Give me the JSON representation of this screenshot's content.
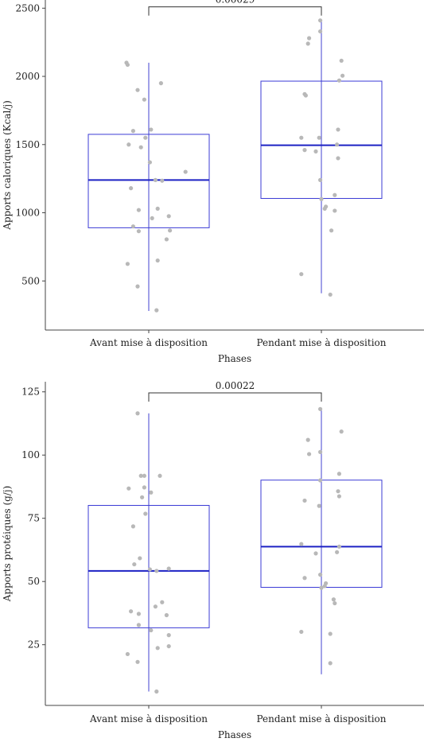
{
  "colors": {
    "box": "#3b3bd6",
    "median": "#1d22c4",
    "whisker": "#4040d0",
    "points": "#b8b8b8",
    "axis": "#444444",
    "bracket": "#333333"
  },
  "chart_data": [
    {
      "type": "box",
      "title": "",
      "xlabel": "Phases",
      "ylabel": "Apports caloriques (Kcal/j)",
      "categories": [
        "Avant mise à disposition",
        "Pendant mise à disposition"
      ],
      "yticks": [
        "500",
        "1000",
        "1500",
        "2000",
        "2500"
      ],
      "ytick_values": [
        500,
        1000,
        1500,
        2000,
        2500
      ],
      "ylim": [
        140,
        2560
      ],
      "grid": false,
      "boxes": [
        {
          "q1": 890,
          "median": 1240,
          "q3": 1575,
          "whisker_low": 280,
          "whisker_high": 2100
        },
        {
          "q1": 1105,
          "median": 1495,
          "q3": 1965,
          "whisker_low": 410,
          "whisker_high": 2410
        }
      ],
      "points": [
        [
          {
            "x": -0.2,
            "y": 2100
          },
          {
            "x": -0.19,
            "y": 2085
          },
          {
            "x": 0.11,
            "y": 1950
          },
          {
            "x": -0.1,
            "y": 1900
          },
          {
            "x": -0.04,
            "y": 1830
          },
          {
            "x": 0.02,
            "y": 1610
          },
          {
            "x": -0.14,
            "y": 1600
          },
          {
            "x": -0.03,
            "y": 1550
          },
          {
            "x": -0.18,
            "y": 1500
          },
          {
            "x": -0.07,
            "y": 1480
          },
          {
            "x": 0.01,
            "y": 1370
          },
          {
            "x": 0.33,
            "y": 1300
          },
          {
            "x": 0.06,
            "y": 1240
          },
          {
            "x": 0.12,
            "y": 1235
          },
          {
            "x": -0.16,
            "y": 1180
          },
          {
            "x": 0.08,
            "y": 1030
          },
          {
            "x": -0.09,
            "y": 1020
          },
          {
            "x": 0.18,
            "y": 975
          },
          {
            "x": 0.03,
            "y": 960
          },
          {
            "x": -0.14,
            "y": 900
          },
          {
            "x": 0.19,
            "y": 870
          },
          {
            "x": -0.09,
            "y": 865
          },
          {
            "x": 0.16,
            "y": 805
          },
          {
            "x": 0.08,
            "y": 650
          },
          {
            "x": -0.19,
            "y": 625
          },
          {
            "x": -0.1,
            "y": 460
          },
          {
            "x": 0.07,
            "y": 285
          }
        ],
        [
          {
            "x": -0.01,
            "y": 2410
          },
          {
            "x": -0.11,
            "y": 2280
          },
          {
            "x": -0.01,
            "y": 2330
          },
          {
            "x": -0.12,
            "y": 2240
          },
          {
            "x": 0.18,
            "y": 2115
          },
          {
            "x": 0.19,
            "y": 2005
          },
          {
            "x": 0.16,
            "y": 1970
          },
          {
            "x": -0.15,
            "y": 1870
          },
          {
            "x": -0.14,
            "y": 1860
          },
          {
            "x": 0.15,
            "y": 1610
          },
          {
            "x": -0.18,
            "y": 1550
          },
          {
            "x": -0.02,
            "y": 1550
          },
          {
            "x": 0.14,
            "y": 1500
          },
          {
            "x": -0.15,
            "y": 1460
          },
          {
            "x": -0.05,
            "y": 1450
          },
          {
            "x": 0.15,
            "y": 1400
          },
          {
            "x": -0.01,
            "y": 1240
          },
          {
            "x": 0.12,
            "y": 1130
          },
          {
            "x": 0.0,
            "y": 1100
          },
          {
            "x": 0.04,
            "y": 1045
          },
          {
            "x": 0.03,
            "y": 1030
          },
          {
            "x": 0.12,
            "y": 1015
          },
          {
            "x": 0.09,
            "y": 870
          },
          {
            "x": -0.18,
            "y": 550
          },
          {
            "x": 0.08,
            "y": 400
          }
        ]
      ],
      "comparison": {
        "label": "0.00029",
        "y": 2510
      }
    },
    {
      "type": "box",
      "title": "",
      "xlabel": "Phases",
      "ylabel": "Apports protéiques (g/j)",
      "categories": [
        "Avant mise à disposition",
        "Pendant mise à disposition"
      ],
      "yticks": [
        "25",
        "50",
        "75",
        "100",
        "125"
      ],
      "ytick_values": [
        25,
        50,
        75,
        100,
        125
      ],
      "ylim": [
        1,
        129
      ],
      "grid": false,
      "boxes": [
        {
          "q1": 31.7,
          "median": 54.2,
          "q3": 80.1,
          "whisker_low": 6.5,
          "whisker_high": 116.5
        },
        {
          "q1": 47.7,
          "median": 63.8,
          "q3": 90.1,
          "whisker_low": 13.3,
          "whisker_high": 118.5
        }
      ],
      "points": [
        [
          {
            "x": -0.1,
            "y": 116.5
          },
          {
            "x": -0.04,
            "y": 91.8
          },
          {
            "x": 0.1,
            "y": 91.8
          },
          {
            "x": -0.07,
            "y": 91.8
          },
          {
            "x": -0.18,
            "y": 86.8
          },
          {
            "x": -0.04,
            "y": 87.2
          },
          {
            "x": 0.02,
            "y": 85.2
          },
          {
            "x": -0.06,
            "y": 83.3
          },
          {
            "x": -0.03,
            "y": 76.8
          },
          {
            "x": -0.14,
            "y": 71.8
          },
          {
            "x": -0.08,
            "y": 59.2
          },
          {
            "x": -0.13,
            "y": 56.8
          },
          {
            "x": 0.01,
            "y": 54.8
          },
          {
            "x": 0.07,
            "y": 54.2
          },
          {
            "x": 0.18,
            "y": 55.1
          },
          {
            "x": 0.12,
            "y": 41.8
          },
          {
            "x": 0.06,
            "y": 40.1
          },
          {
            "x": -0.16,
            "y": 38.2
          },
          {
            "x": -0.09,
            "y": 37.2
          },
          {
            "x": 0.16,
            "y": 36.7
          },
          {
            "x": -0.09,
            "y": 32.8
          },
          {
            "x": 0.02,
            "y": 30.7
          },
          {
            "x": 0.18,
            "y": 28.8
          },
          {
            "x": 0.08,
            "y": 23.7
          },
          {
            "x": 0.18,
            "y": 24.4
          },
          {
            "x": -0.19,
            "y": 21.3
          },
          {
            "x": -0.1,
            "y": 18.2
          },
          {
            "x": 0.07,
            "y": 6.5
          }
        ],
        [
          {
            "x": -0.01,
            "y": 118.2
          },
          {
            "x": 0.18,
            "y": 109.3
          },
          {
            "x": -0.12,
            "y": 106.0
          },
          {
            "x": -0.01,
            "y": 101.2
          },
          {
            "x": -0.11,
            "y": 100.4
          },
          {
            "x": 0.16,
            "y": 92.6
          },
          {
            "x": -0.01,
            "y": 90.0
          },
          {
            "x": 0.15,
            "y": 85.7
          },
          {
            "x": 0.16,
            "y": 83.7
          },
          {
            "x": -0.15,
            "y": 82.0
          },
          {
            "x": -0.02,
            "y": 79.9
          },
          {
            "x": -0.18,
            "y": 64.8
          },
          {
            "x": 0.16,
            "y": 63.8
          },
          {
            "x": -0.05,
            "y": 61.1
          },
          {
            "x": 0.14,
            "y": 61.6
          },
          {
            "x": -0.15,
            "y": 51.4
          },
          {
            "x": -0.01,
            "y": 52.7
          },
          {
            "x": 0.04,
            "y": 49.3
          },
          {
            "x": 0.03,
            "y": 48.2
          },
          {
            "x": 0.0,
            "y": 47.5
          },
          {
            "x": 0.11,
            "y": 42.9
          },
          {
            "x": 0.12,
            "y": 41.4
          },
          {
            "x": -0.18,
            "y": 30.1
          },
          {
            "x": 0.08,
            "y": 29.3
          },
          {
            "x": 0.08,
            "y": 17.7
          }
        ]
      ],
      "comparison": {
        "label": "0.00022",
        "y": 124.6
      }
    }
  ]
}
